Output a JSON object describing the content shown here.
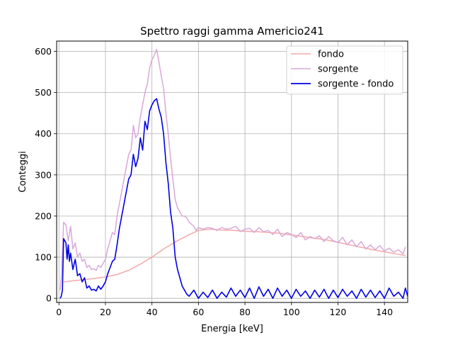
{
  "chart_data": {
    "type": "line",
    "title": "Spettro raggi gamma Americio241",
    "xlabel": "Energia [keV]",
    "ylabel": "Conteggi",
    "xlim": [
      -1,
      150
    ],
    "ylim": [
      -10,
      625
    ],
    "xticks": [
      0,
      20,
      40,
      60,
      80,
      100,
      120,
      140
    ],
    "yticks": [
      0,
      100,
      200,
      300,
      400,
      500,
      600
    ],
    "grid": true,
    "legend": "top-right",
    "series": [
      {
        "name": "fondo",
        "color": "#f4a8a8",
        "x": [
          2,
          5,
          10,
          15,
          20,
          25,
          30,
          35,
          40,
          45,
          48,
          50,
          55,
          60,
          65,
          70,
          75,
          80,
          85,
          90,
          95,
          100,
          105,
          110,
          115,
          120,
          125,
          130,
          135,
          140,
          145,
          149
        ],
        "y": [
          40,
          42,
          45,
          48,
          52,
          58,
          68,
          83,
          100,
          120,
          130,
          137,
          152,
          165,
          168,
          166,
          165,
          163,
          162,
          160,
          158,
          154,
          150,
          146,
          142,
          136,
          130,
          124,
          118,
          113,
          108,
          104
        ]
      },
      {
        "name": "sorgente",
        "color": "#d8a8d8",
        "x": [
          0.5,
          1,
          2,
          3,
          4,
          5,
          6,
          7,
          8,
          9,
          10,
          11,
          12,
          13,
          14,
          15,
          16,
          17,
          18,
          19,
          20,
          21,
          22,
          23,
          24,
          25,
          26,
          27,
          28,
          29,
          30,
          31,
          32,
          33,
          34,
          35,
          36,
          37,
          38,
          39,
          40,
          41,
          42,
          43,
          44,
          45,
          46,
          47,
          48,
          49,
          50,
          51,
          52,
          53,
          54,
          55,
          56,
          57,
          58,
          59,
          60,
          62,
          64,
          66,
          68,
          70,
          72,
          74,
          76,
          78,
          80,
          82,
          84,
          86,
          88,
          90,
          92,
          94,
          96,
          98,
          100,
          102,
          104,
          106,
          108,
          110,
          112,
          114,
          116,
          118,
          120,
          122,
          124,
          126,
          128,
          130,
          132,
          134,
          136,
          138,
          140,
          142,
          144,
          146,
          148,
          149
        ],
        "y": [
          20,
          50,
          185,
          178,
          140,
          175,
          120,
          135,
          100,
          110,
          90,
          95,
          75,
          80,
          70,
          72,
          68,
          80,
          75,
          85,
          95,
          120,
          140,
          160,
          155,
          200,
          230,
          260,
          290,
          320,
          350,
          360,
          420,
          390,
          400,
          440,
          470,
          500,
          520,
          560,
          580,
          590,
          605,
          575,
          540,
          510,
          450,
          400,
          340,
          290,
          240,
          220,
          210,
          200,
          200,
          195,
          185,
          180,
          175,
          165,
          172,
          168,
          172,
          170,
          165,
          172,
          168,
          170,
          175,
          162,
          168,
          170,
          160,
          172,
          162,
          165,
          155,
          168,
          150,
          160,
          155,
          148,
          160,
          142,
          150,
          145,
          152,
          138,
          150,
          140,
          135,
          148,
          130,
          142,
          125,
          138,
          120,
          130,
          118,
          128,
          115,
          122,
          112,
          118,
          108,
          125
        ]
      },
      {
        "name": "sorgente - fondo",
        "color": "#0000e6",
        "x": [
          0.5,
          1,
          1.5,
          2,
          2.5,
          3,
          3.5,
          4,
          4.5,
          5,
          6,
          7,
          8,
          9,
          10,
          11,
          12,
          13,
          14,
          15,
          16,
          17,
          18,
          19,
          20,
          21,
          22,
          23,
          24,
          25,
          26,
          27,
          28,
          29,
          30,
          31,
          32,
          33,
          34,
          35,
          36,
          37,
          38,
          39,
          40,
          41,
          42,
          43,
          44,
          45,
          46,
          47,
          48,
          49,
          50,
          51,
          52,
          53,
          54,
          55,
          56,
          58,
          60,
          62,
          64,
          66,
          68,
          70,
          72,
          74,
          76,
          78,
          80,
          82,
          84,
          86,
          88,
          90,
          92,
          94,
          96,
          98,
          100,
          102,
          104,
          106,
          108,
          110,
          112,
          114,
          116,
          118,
          120,
          122,
          124,
          126,
          128,
          130,
          132,
          134,
          136,
          138,
          140,
          142,
          144,
          146,
          148,
          149,
          150
        ],
        "y": [
          0,
          5,
          20,
          145,
          140,
          135,
          95,
          130,
          90,
          110,
          70,
          95,
          55,
          60,
          40,
          50,
          25,
          30,
          20,
          22,
          18,
          30,
          22,
          30,
          40,
          60,
          75,
          90,
          95,
          130,
          170,
          200,
          230,
          260,
          290,
          300,
          350,
          320,
          340,
          390,
          360,
          430,
          410,
          455,
          470,
          480,
          485,
          460,
          440,
          400,
          330,
          280,
          210,
          170,
          100,
          70,
          50,
          30,
          20,
          10,
          5,
          20,
          0,
          15,
          2,
          20,
          0,
          15,
          3,
          25,
          5,
          20,
          2,
          25,
          0,
          28,
          5,
          22,
          0,
          25,
          5,
          20,
          0,
          22,
          5,
          18,
          0,
          20,
          3,
          22,
          0,
          20,
          2,
          22,
          5,
          18,
          0,
          22,
          3,
          20,
          2,
          18,
          0,
          25,
          5,
          15,
          0,
          25,
          5
        ]
      }
    ]
  }
}
